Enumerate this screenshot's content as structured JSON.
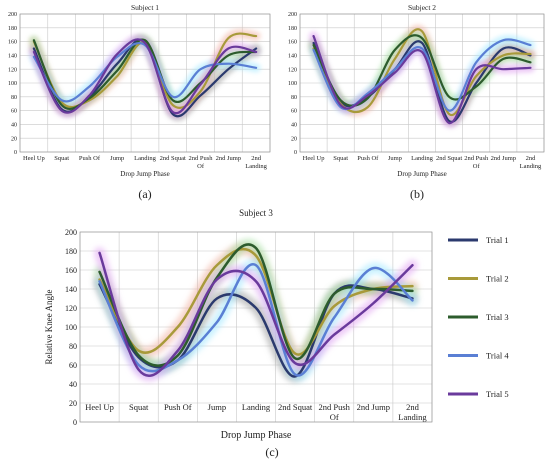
{
  "charts": [
    {
      "id": "a",
      "caption": "(a)",
      "chart_data": {
        "type": "line",
        "title": "Subject 1",
        "xlabel": "Drop Jump Phase",
        "ylabel": "",
        "ylim": [
          0,
          200
        ],
        "yticks": [
          0,
          20,
          40,
          60,
          80,
          100,
          120,
          140,
          160,
          180,
          200
        ],
        "categories": [
          "Heel Up",
          "Squat",
          "Push Of",
          "Jump",
          "Landing",
          "2nd Squat",
          "2nd Push Of",
          "2nd Jump",
          "2nd Landing"
        ],
        "grid": true,
        "series": [
          {
            "values": [
              150,
              62,
              80,
              128,
              160,
              55,
              82,
              120,
              150
            ]
          },
          {
            "values": [
              160,
              72,
              75,
              110,
              158,
              68,
              88,
              165,
              168
            ]
          },
          {
            "values": [
              162,
              68,
              78,
              118,
              162,
              75,
              100,
              140,
              145
            ]
          },
          {
            "values": [
              138,
              75,
              95,
              138,
              155,
              80,
              120,
              128,
              122
            ]
          },
          {
            "values": [
              145,
              60,
              82,
              142,
              158,
              58,
              98,
              150,
              145
            ]
          }
        ]
      }
    },
    {
      "id": "b",
      "caption": "(b)",
      "chart_data": {
        "type": "line",
        "title": "Subject 2",
        "xlabel": "Drop Jump Phase",
        "ylabel": "",
        "ylim": [
          0,
          200
        ],
        "yticks": [
          0,
          20,
          40,
          60,
          80,
          100,
          120,
          140,
          160,
          180,
          200
        ],
        "categories": [
          "Heel Up",
          "Squat",
          "Push Of",
          "Jump",
          "Landing",
          "2nd Squat",
          "2nd Push Of",
          "2nd Jump",
          "2nd Landing"
        ],
        "grid": true,
        "series": [
          {
            "values": [
              158,
              72,
              80,
              120,
              158,
              45,
              100,
              150,
              140
            ]
          },
          {
            "values": [
              150,
              70,
              65,
              135,
              175,
              55,
              110,
              140,
              142
            ]
          },
          {
            "values": [
              155,
              75,
              78,
              148,
              165,
              80,
              95,
              135,
              130
            ]
          },
          {
            "values": [
              148,
              65,
              85,
              120,
              150,
              60,
              130,
              162,
              155
            ]
          },
          {
            "values": [
              168,
              68,
              82,
              115,
              145,
              42,
              120,
              120,
              122
            ]
          }
        ]
      }
    },
    {
      "id": "c",
      "caption": "(c)",
      "chart_data": {
        "type": "line",
        "title": "Subject 3",
        "xlabel": "Drop Jump Phase",
        "ylabel": "Relative Knee Angle",
        "ylim": [
          0,
          200
        ],
        "yticks": [
          0,
          20,
          40,
          60,
          80,
          100,
          120,
          140,
          160,
          180,
          200
        ],
        "categories": [
          "Heel Up",
          "Squat",
          "Push Of",
          "Jump",
          "Landing",
          "2nd Squat",
          "2nd Push Of",
          "2nd Jump",
          "2nd Landing"
        ],
        "grid": true,
        "legend": "right",
        "series": [
          {
            "name": "Trial 1",
            "values": [
              145,
              68,
              65,
              130,
              120,
              48,
              135,
              140,
              130
            ]
          },
          {
            "name": "Trial 2",
            "values": [
              150,
              75,
              100,
              165,
              175,
              72,
              122,
              140,
              143
            ]
          },
          {
            "name": "Trial 3",
            "values": [
              158,
              70,
              70,
              152,
              183,
              67,
              135,
              140,
              138
            ]
          },
          {
            "name": "Trial 4",
            "values": [
              148,
              60,
              65,
              105,
              165,
              50,
              110,
              162,
              128
            ]
          },
          {
            "name": "Trial 5",
            "values": [
              178,
              55,
              75,
              150,
              148,
              62,
              92,
              125,
              165
            ]
          }
        ]
      }
    }
  ],
  "colors": [
    "#2b3a6e",
    "#a89a3a",
    "#2d5c2d",
    "#5a7fd4",
    "#6a3a9c"
  ],
  "glows": [
    "#9a9a9a",
    "#f0b0a0",
    "#a0e0a0",
    "#a0e8ff",
    "#e0a0f0"
  ]
}
